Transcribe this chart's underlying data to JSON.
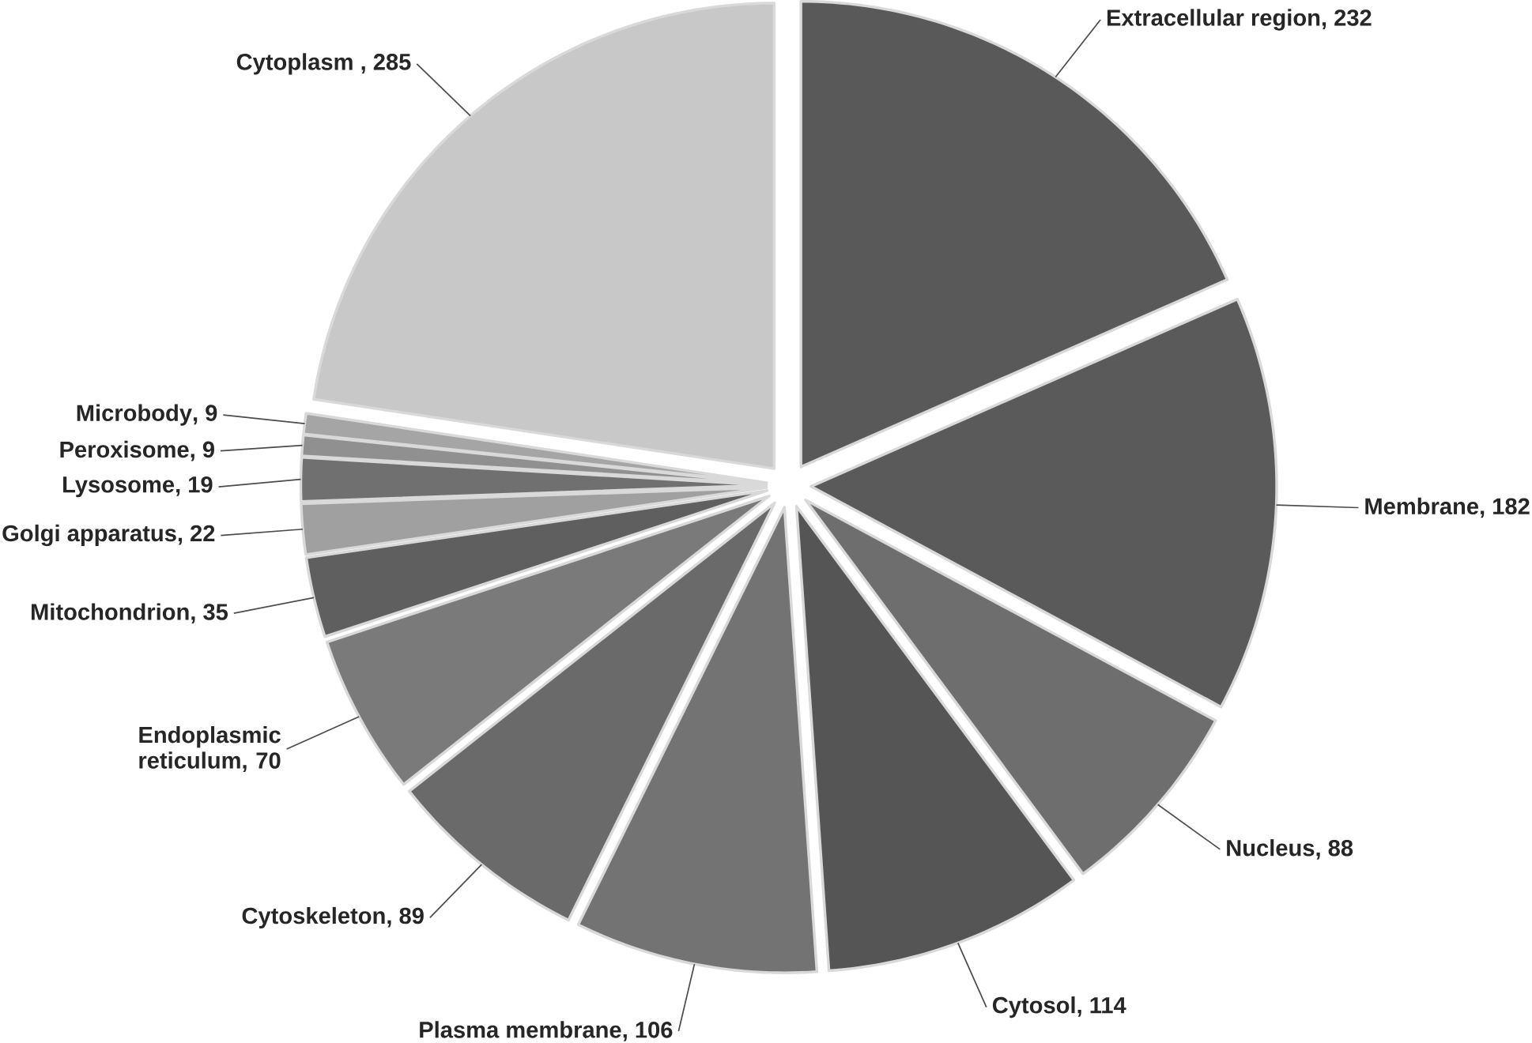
{
  "chart_data": {
    "type": "pie",
    "categories": [
      "Extracellular region",
      "Membrane",
      "Nucleus",
      "Cytosol",
      "Plasma membrane",
      "Cytoskeleton",
      "Endoplasmic reticulum",
      "Mitochondrion",
      "Golgi apparatus",
      "Lysosome",
      "Peroxisome",
      "Microbody",
      "Cytoplasm"
    ],
    "values": [
      232,
      182,
      88,
      114,
      106,
      89,
      70,
      35,
      22,
      19,
      9,
      9,
      285
    ],
    "colors": [
      "#595959",
      "#5a5a5a",
      "#6e6e6e",
      "#555555",
      "#737373",
      "#6a6a6a",
      "#7a7a7a",
      "#5f5f5f",
      "#a0a0a0",
      "#707070",
      "#909090",
      "#a5a5a5",
      "#c8c8c8"
    ],
    "value_labels": [
      ", 232",
      ", 182",
      ", 88",
      ", 114",
      ", 106",
      ", 89",
      ", 70",
      ", 35",
      ", 22",
      ", 19",
      ", 9",
      ", 9",
      " , 285"
    ]
  }
}
